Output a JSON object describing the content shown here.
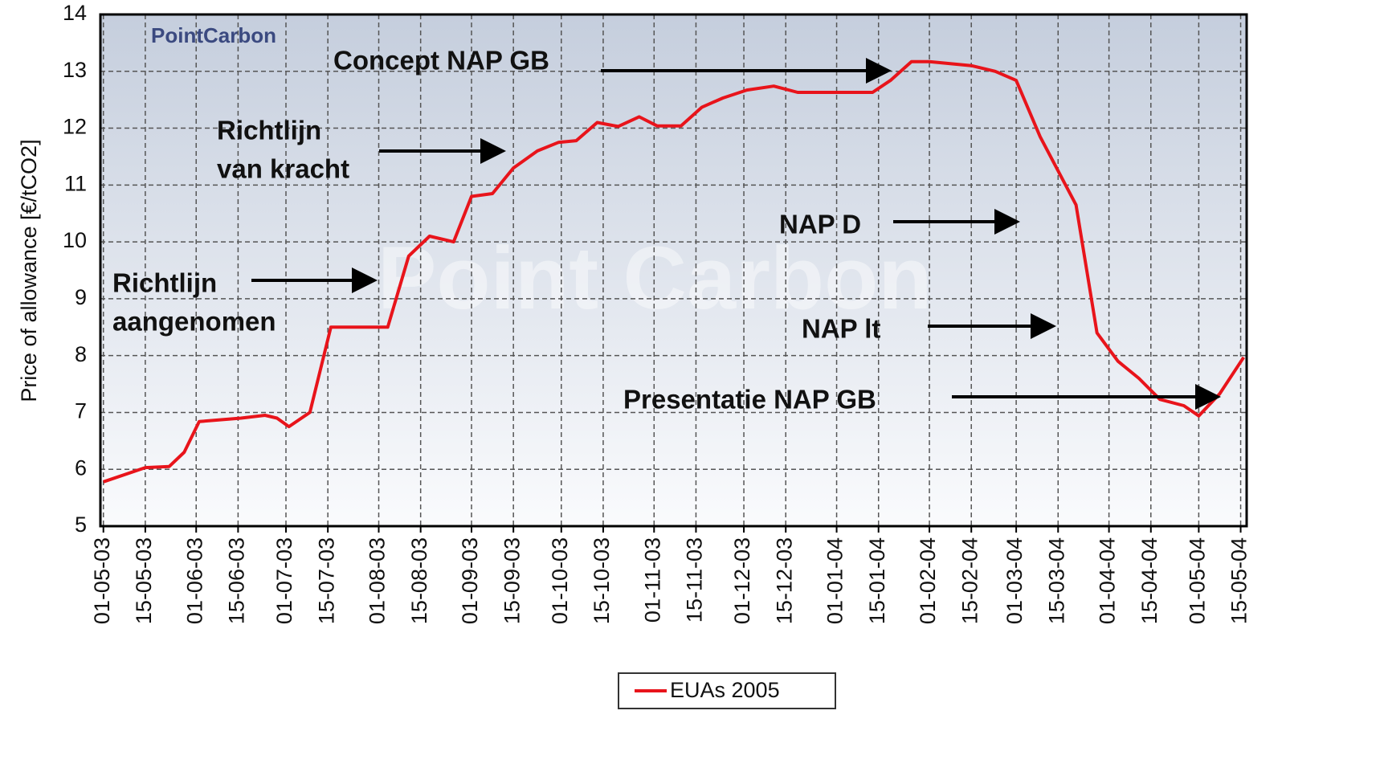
{
  "chart_data": {
    "type": "line",
    "ylabel": "Price of allowance [€/tCO2]",
    "logo": "PointCarbon",
    "watermark": "Point Carbon",
    "x": [
      "2003-05-01",
      "2003-05-15",
      "2003-05-23",
      "2003-05-28",
      "2003-06-02",
      "2003-06-09",
      "2003-06-16",
      "2003-06-24",
      "2003-06-28",
      "2003-07-02",
      "2003-07-09",
      "2003-07-16",
      "2003-07-24",
      "2003-08-04",
      "2003-08-11",
      "2003-08-18",
      "2003-08-26",
      "2003-09-01",
      "2003-09-08",
      "2003-09-15",
      "2003-09-23",
      "2003-09-30",
      "2003-10-06",
      "2003-10-13",
      "2003-10-20",
      "2003-10-27",
      "2003-11-02",
      "2003-11-10",
      "2003-11-17",
      "2003-11-24",
      "2003-12-02",
      "2003-12-11",
      "2003-12-19",
      "2004-01-01",
      "2004-01-13",
      "2004-01-19",
      "2004-01-26",
      "2004-02-01",
      "2004-02-15",
      "2004-02-23",
      "2004-03-01",
      "2004-03-09",
      "2004-03-21",
      "2004-03-28",
      "2004-04-04",
      "2004-04-11",
      "2004-04-18",
      "2004-04-26",
      "2004-05-01",
      "2004-05-08",
      "2004-05-16"
    ],
    "series": [
      {
        "name": "EUAs 2005",
        "color": "#e8141b",
        "values": [
          5.78,
          6.03,
          6.05,
          6.3,
          6.84,
          6.87,
          6.9,
          6.95,
          6.9,
          6.75,
          7.0,
          8.5,
          8.5,
          8.5,
          9.75,
          10.1,
          10.0,
          10.8,
          10.85,
          11.3,
          11.6,
          11.75,
          11.78,
          12.1,
          12.03,
          12.2,
          12.04,
          12.04,
          12.37,
          12.53,
          12.67,
          12.74,
          12.63,
          12.63,
          12.63,
          12.84,
          13.17,
          13.17,
          13.1,
          13.0,
          12.84,
          11.85,
          10.65,
          8.4,
          7.9,
          7.6,
          7.23,
          7.12,
          6.94,
          7.33,
          7.97
        ]
      }
    ],
    "xlim": [
      "2003-04-30",
      "2004-05-17"
    ],
    "xticks": [
      {
        "value": "2003-05-01",
        "label": "01-05-03"
      },
      {
        "value": "2003-05-15",
        "label": "15-05-03"
      },
      {
        "value": "2003-06-01",
        "label": "01-06-03"
      },
      {
        "value": "2003-06-15",
        "label": "15-06-03"
      },
      {
        "value": "2003-07-01",
        "label": "01-07-03"
      },
      {
        "value": "2003-07-15",
        "label": "15-07-03"
      },
      {
        "value": "2003-08-01",
        "label": "01-08-03"
      },
      {
        "value": "2003-08-15",
        "label": "15-08-03"
      },
      {
        "value": "2003-09-01",
        "label": "01-09-03"
      },
      {
        "value": "2003-09-15",
        "label": "15-09-03"
      },
      {
        "value": "2003-10-01",
        "label": "01-10-03"
      },
      {
        "value": "2003-10-15",
        "label": "15-10-03"
      },
      {
        "value": "2003-11-01",
        "label": "01-11-03"
      },
      {
        "value": "2003-11-15",
        "label": "15-11-03"
      },
      {
        "value": "2003-12-01",
        "label": "01-12-03"
      },
      {
        "value": "2003-12-15",
        "label": "15-12-03"
      },
      {
        "value": "2004-01-01",
        "label": "01-01-04"
      },
      {
        "value": "2004-01-15",
        "label": "15-01-04"
      },
      {
        "value": "2004-02-01",
        "label": "01-02-04"
      },
      {
        "value": "2004-02-15",
        "label": "15-02-04"
      },
      {
        "value": "2004-03-01",
        "label": "01-03-04"
      },
      {
        "value": "2004-03-15",
        "label": "15-03-04"
      },
      {
        "value": "2004-04-01",
        "label": "01-04-04"
      },
      {
        "value": "2004-04-15",
        "label": "15-04-04"
      },
      {
        "value": "2004-05-01",
        "label": "01-05-04"
      },
      {
        "value": "2004-05-15",
        "label": "15-05-04"
      }
    ],
    "ylim": [
      5,
      14
    ],
    "yticks": [
      5,
      6,
      7,
      8,
      9,
      10,
      11,
      12,
      13,
      14
    ],
    "grid": true,
    "legend": "bottom",
    "annotations": [
      {
        "lines": [
          "Concept NAP GB"
        ]
      },
      {
        "lines": [
          "Richtlijn",
          "van kracht"
        ]
      },
      {
        "lines": [
          "Richtlijn",
          "aangenomen"
        ]
      },
      {
        "lines": [
          "NAP D"
        ]
      },
      {
        "lines": [
          "NAP lt"
        ]
      },
      {
        "lines": [
          "Presentatie NAP GB"
        ]
      }
    ]
  }
}
